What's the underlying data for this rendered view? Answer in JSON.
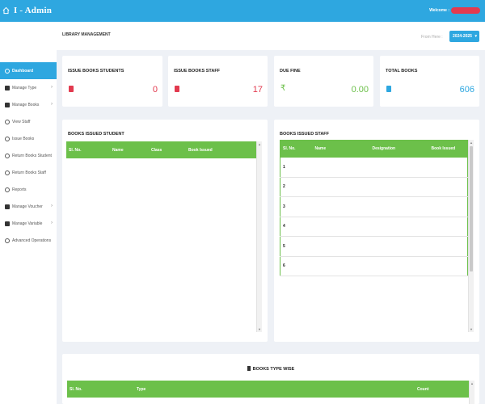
{
  "header": {
    "brand": "I - Admin",
    "welcome": "Welcome :"
  },
  "sidebar": {
    "items": [
      {
        "label": "Dashboard",
        "icon": "dashboard-icon",
        "active": true
      },
      {
        "label": "Manage Type",
        "icon": "type-icon",
        "chevron": true
      },
      {
        "label": "Manage Books",
        "icon": "books-icon",
        "chevron": true
      },
      {
        "label": "View Staff",
        "icon": "staff-icon"
      },
      {
        "label": "Issue Books",
        "icon": "issue-icon"
      },
      {
        "label": "Return Books Student",
        "icon": "return-student-icon"
      },
      {
        "label": "Return Books Staff",
        "icon": "return-staff-icon"
      },
      {
        "label": "Reports",
        "icon": "reports-icon"
      },
      {
        "label": "Manage Voucher",
        "icon": "voucher-icon",
        "chevron": true
      },
      {
        "label": "Manage Variable",
        "icon": "variable-icon",
        "chevron": true
      },
      {
        "label": "Advanced Operations",
        "icon": "advanced-icon"
      }
    ]
  },
  "content": {
    "breadcrumb": "LIBRARY MANAGEMENT",
    "year_label": "From Here :",
    "year_value": "2024-2025"
  },
  "stats": [
    {
      "title": "ISSUE BOOKS STUDENTS",
      "value": "0",
      "icon": "book-icon",
      "color": "#e23a4f"
    },
    {
      "title": "ISSUE BOOKS STAFF",
      "value": "17",
      "icon": "book-icon",
      "color": "#e23a4f"
    },
    {
      "title": "DUE FINE",
      "value": "0.00",
      "icon": "rupee-icon",
      "color": "#6cc04a"
    },
    {
      "title": "TOTAL BOOKS",
      "value": "606",
      "icon": "book-icon",
      "color": "#2ea7e0"
    }
  ],
  "panels": {
    "student": {
      "title": "BOOKS ISSUED STUDENT",
      "columns": [
        "Sl. No.",
        "Name",
        "Class",
        "Book Issued"
      ]
    },
    "staff": {
      "title": "BOOKS ISSUED STAFF",
      "columns": [
        "Sl. No.",
        "Name",
        "Designation",
        "Book Issued"
      ],
      "rows": [
        "1",
        "2",
        "3",
        "4",
        "5",
        "6"
      ]
    },
    "type_wise": {
      "title": "BOOKS TYPE WISE",
      "columns": [
        "Sl. No.",
        "Type",
        "Count"
      ]
    }
  },
  "colors": {
    "primary": "#2ea7e0",
    "table_header": "#6cc04a",
    "accent_red": "#e23a4f"
  }
}
